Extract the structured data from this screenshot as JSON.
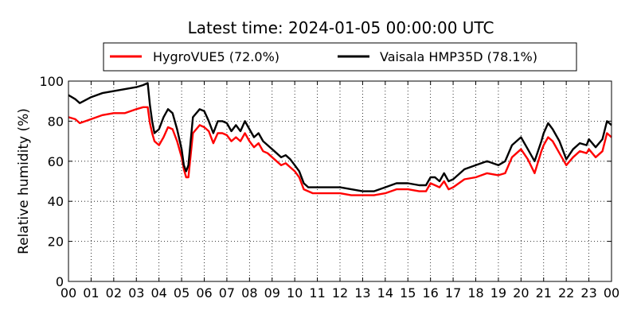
{
  "chart_data": {
    "type": "line",
    "title": "Latest time: 2024-01-05 00:00:00 UTC",
    "ylabel": "Relative humidity (%)",
    "xlabel": "",
    "xlim": [
      0,
      24
    ],
    "ylim": [
      0,
      100
    ],
    "grid": true,
    "grid_style": "dotted",
    "legend_position": "top-center",
    "x_tick_labels": [
      "00",
      "01",
      "02",
      "03",
      "04",
      "05",
      "06",
      "07",
      "08",
      "09",
      "10",
      "11",
      "12",
      "13",
      "14",
      "15",
      "16",
      "17",
      "18",
      "19",
      "20",
      "21",
      "22",
      "23",
      "00"
    ],
    "y_tick_labels": [
      "0",
      "20",
      "40",
      "60",
      "80",
      "100"
    ],
    "series": [
      {
        "name": "HygroVUE5 (72.0%)",
        "color": "#ff0000",
        "x": [
          0,
          0.3,
          0.5,
          1,
          1.5,
          2,
          2.5,
          3,
          3.3,
          3.5,
          3.6,
          3.7,
          3.8,
          4,
          4.2,
          4.4,
          4.6,
          4.8,
          5,
          5.1,
          5.2,
          5.3,
          5.5,
          5.8,
          6,
          6.2,
          6.4,
          6.6,
          6.8,
          7,
          7.2,
          7.4,
          7.6,
          7.8,
          8,
          8.2,
          8.4,
          8.6,
          8.8,
          9,
          9.2,
          9.4,
          9.6,
          9.8,
          10,
          10.2,
          10.4,
          10.6,
          10.8,
          11,
          11.5,
          12,
          12.5,
          13,
          13.5,
          14,
          14.5,
          15,
          15.5,
          15.8,
          16,
          16.2,
          16.4,
          16.6,
          16.8,
          17,
          17.5,
          18,
          18.5,
          19,
          19.3,
          19.6,
          20,
          20.3,
          20.6,
          20.9,
          21,
          21.2,
          21.4,
          21.7,
          22,
          22.3,
          22.6,
          22.9,
          23,
          23.3,
          23.6,
          23.8,
          24
        ],
        "y": [
          82,
          81,
          79,
          81,
          83,
          84,
          84,
          86,
          87,
          87,
          79,
          74,
          70,
          68,
          72,
          77,
          76,
          70,
          62,
          56,
          52,
          52,
          74,
          78,
          77,
          75,
          69,
          74,
          74,
          73,
          70,
          72,
          70,
          74,
          70,
          67,
          69,
          65,
          64,
          62,
          60,
          58,
          59,
          57,
          55,
          52,
          46,
          45,
          44,
          44,
          44,
          44,
          43,
          43,
          43,
          44,
          46,
          46,
          45,
          45,
          49,
          48,
          47,
          50,
          46,
          47,
          51,
          52,
          54,
          53,
          54,
          62,
          66,
          61,
          54,
          65,
          68,
          72,
          70,
          64,
          58,
          62,
          65,
          64,
          66,
          62,
          65,
          74,
          72
        ]
      },
      {
        "name": "Vaisala HMP35D (78.1%)",
        "color": "#000000",
        "x": [
          0,
          0.3,
          0.5,
          1,
          1.5,
          2,
          2.5,
          3,
          3.3,
          3.5,
          3.6,
          3.7,
          3.8,
          4,
          4.2,
          4.4,
          4.6,
          4.8,
          5,
          5.1,
          5.2,
          5.3,
          5.5,
          5.8,
          6,
          6.2,
          6.4,
          6.6,
          6.8,
          7,
          7.2,
          7.4,
          7.6,
          7.8,
          8,
          8.2,
          8.4,
          8.6,
          8.8,
          9,
          9.2,
          9.4,
          9.6,
          9.8,
          10,
          10.2,
          10.4,
          10.6,
          10.8,
          11,
          11.5,
          12,
          12.5,
          13,
          13.5,
          14,
          14.5,
          15,
          15.5,
          15.8,
          16,
          16.2,
          16.4,
          16.6,
          16.8,
          17,
          17.5,
          18,
          18.5,
          19,
          19.3,
          19.6,
          20,
          20.3,
          20.6,
          20.9,
          21,
          21.2,
          21.4,
          21.7,
          22,
          22.3,
          22.6,
          22.9,
          23,
          23.3,
          23.6,
          23.8,
          24
        ],
        "y": [
          93,
          91,
          89,
          92,
          94,
          95,
          96,
          97,
          98,
          99,
          88,
          80,
          74,
          76,
          82,
          86,
          84,
          76,
          66,
          58,
          55,
          58,
          82,
          86,
          85,
          80,
          74,
          80,
          80,
          79,
          75,
          78,
          75,
          80,
          76,
          72,
          74,
          70,
          68,
          66,
          64,
          62,
          63,
          61,
          58,
          55,
          49,
          47,
          47,
          47,
          47,
          47,
          46,
          45,
          45,
          47,
          49,
          49,
          48,
          48,
          52,
          52,
          50,
          54,
          50,
          51,
          56,
          58,
          60,
          58,
          60,
          68,
          72,
          66,
          60,
          70,
          74,
          79,
          76,
          70,
          61,
          66,
          69,
          68,
          71,
          67,
          71,
          80,
          78
        ]
      }
    ]
  }
}
